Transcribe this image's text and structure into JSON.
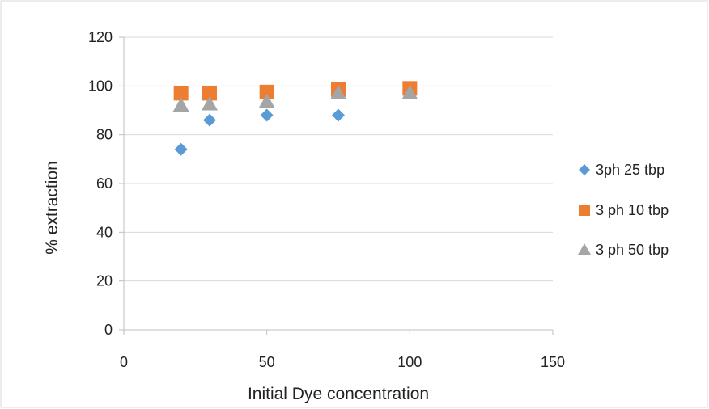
{
  "chart_data": {
    "type": "scatter",
    "title": "",
    "xlabel": "Initial Dye concentration",
    "ylabel": "% extraction",
    "xlim": [
      0,
      150
    ],
    "ylim": [
      0,
      120
    ],
    "xticks": [
      0,
      50,
      100,
      150
    ],
    "yticks": [
      0,
      20,
      40,
      60,
      80,
      100,
      120
    ],
    "grid": "horizontal",
    "legend": "right",
    "series": [
      {
        "name": "3ph 25 tbp",
        "marker": "diamond",
        "color": "#5B9BD5",
        "x": [
          20,
          30,
          50,
          75
        ],
        "y": [
          74,
          86,
          88,
          88
        ]
      },
      {
        "name": "3 ph 10 tbp",
        "marker": "square",
        "color": "#ED7D31",
        "x": [
          20,
          30,
          50,
          75,
          100
        ],
        "y": [
          97,
          97,
          97.5,
          98.5,
          99
        ]
      },
      {
        "name": "3 ph 50 tbp",
        "marker": "triangle",
        "color": "#A5A5A5",
        "x": [
          20,
          30,
          50,
          75,
          100
        ],
        "y": [
          92,
          92.5,
          93.5,
          97,
          97
        ]
      }
    ]
  }
}
